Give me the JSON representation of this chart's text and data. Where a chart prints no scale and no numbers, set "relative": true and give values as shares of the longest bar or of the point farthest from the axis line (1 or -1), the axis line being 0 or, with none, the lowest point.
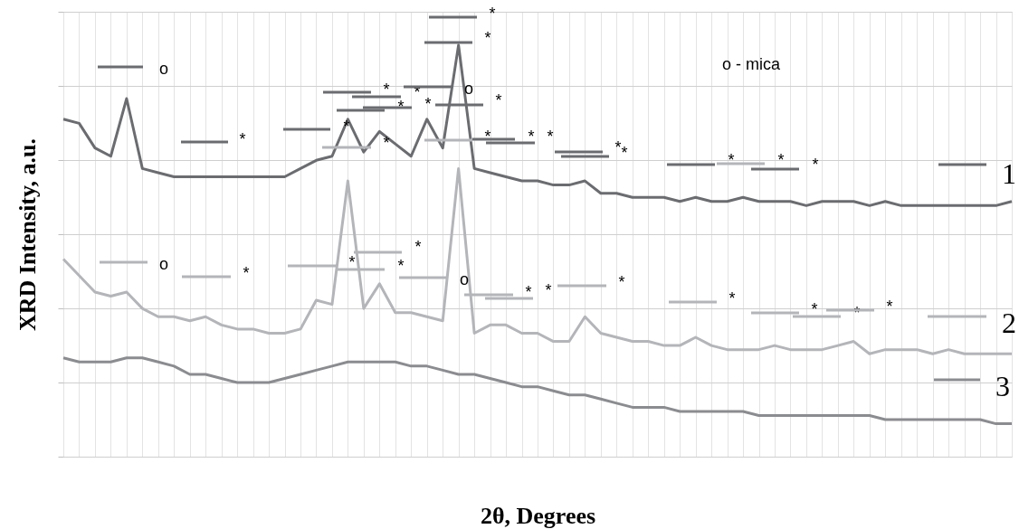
{
  "chart_data": {
    "type": "line",
    "relative": true,
    "grid": true,
    "legend": "right",
    "xlabel": "2θ, Degrees",
    "ylabel": "XRD Intensity, a.u.",
    "categories": [
      null,
      null,
      null,
      null,
      null,
      null,
      null,
      null,
      null,
      null,
      null,
      null,
      null,
      null,
      null,
      null,
      null,
      null,
      null,
      null,
      null,
      null,
      null,
      null,
      null,
      null,
      null,
      null,
      null,
      null,
      null,
      null,
      null,
      null,
      null,
      null,
      null,
      null,
      null,
      null,
      null,
      null,
      null,
      null,
      null,
      null,
      null,
      null,
      null,
      null,
      null,
      null,
      null,
      null,
      null,
      null,
      null,
      null,
      null,
      null,
      null
    ],
    "series": [
      {
        "name": "1",
        "color": "#6b6c70",
        "values": [
          0.82,
          0.81,
          0.75,
          0.73,
          0.87,
          0.7,
          0.69,
          0.68,
          0.68,
          0.68,
          0.68,
          0.68,
          0.68,
          0.68,
          0.68,
          0.7,
          0.72,
          0.73,
          0.82,
          0.74,
          0.79,
          0.76,
          0.73,
          0.82,
          0.75,
          1.0,
          0.7,
          0.69,
          0.68,
          0.67,
          0.67,
          0.66,
          0.66,
          0.67,
          0.64,
          0.64,
          0.63,
          0.63,
          0.63,
          0.62,
          0.63,
          0.62,
          0.62,
          0.63,
          0.62,
          0.62,
          0.62,
          0.61,
          0.62,
          0.62,
          0.62,
          0.61,
          0.62,
          0.61,
          0.61,
          0.61,
          0.61,
          0.61,
          0.61,
          0.61,
          0.62
        ]
      },
      {
        "name": "2",
        "color": "#b4b5b9",
        "values": [
          0.48,
          0.44,
          0.4,
          0.39,
          0.4,
          0.36,
          0.34,
          0.34,
          0.33,
          0.34,
          0.32,
          0.31,
          0.31,
          0.3,
          0.3,
          0.31,
          0.38,
          0.37,
          0.67,
          0.36,
          0.42,
          0.35,
          0.35,
          0.34,
          0.33,
          0.7,
          0.3,
          0.32,
          0.32,
          0.3,
          0.3,
          0.28,
          0.28,
          0.34,
          0.3,
          0.29,
          0.28,
          0.28,
          0.27,
          0.27,
          0.29,
          0.27,
          0.26,
          0.26,
          0.26,
          0.27,
          0.26,
          0.26,
          0.26,
          0.27,
          0.28,
          0.25,
          0.26,
          0.26,
          0.26,
          0.25,
          0.26,
          0.25,
          0.25,
          0.25,
          0.25
        ]
      },
      {
        "name": "3",
        "color": "#8b8c90",
        "values": [
          0.24,
          0.23,
          0.23,
          0.23,
          0.24,
          0.24,
          0.23,
          0.22,
          0.2,
          0.2,
          0.19,
          0.18,
          0.18,
          0.18,
          0.19,
          0.2,
          0.21,
          0.22,
          0.23,
          0.23,
          0.23,
          0.23,
          0.22,
          0.22,
          0.21,
          0.2,
          0.2,
          0.19,
          0.18,
          0.17,
          0.17,
          0.16,
          0.15,
          0.15,
          0.14,
          0.13,
          0.12,
          0.12,
          0.12,
          0.11,
          0.11,
          0.11,
          0.11,
          0.11,
          0.1,
          0.1,
          0.1,
          0.1,
          0.1,
          0.1,
          0.1,
          0.1,
          0.09,
          0.09,
          0.09,
          0.09,
          0.09,
          0.09,
          0.09,
          0.08,
          0.08
        ]
      }
    ],
    "annotations": [
      "o",
      "*",
      "*",
      "*",
      "*",
      "*",
      "*",
      "o",
      "*",
      "*",
      "*",
      "*",
      "*",
      "*",
      "*",
      "*",
      "*",
      "*",
      "*",
      "*",
      "o",
      "*",
      "*",
      "*",
      "*",
      "o",
      "*",
      "*",
      "*",
      "*",
      "*",
      "*",
      "*",
      "o - mica"
    ]
  }
}
